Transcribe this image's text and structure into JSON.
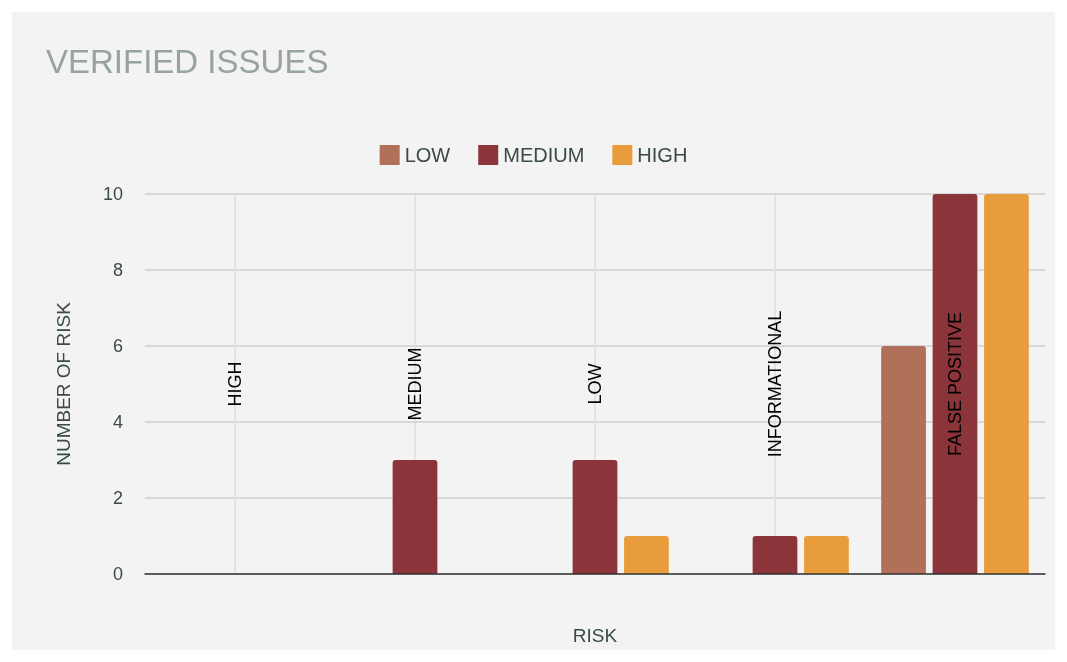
{
  "chart_data": {
    "type": "bar",
    "title": "VERIFIED ISSUES",
    "xlabel": "RISK",
    "ylabel": "NUMBER OF RISK",
    "categories": [
      "HIGH",
      "MEDIUM",
      "LOW",
      "INFORMATIONAL",
      "FALSE POSITIVE"
    ],
    "series": [
      {
        "name": "LOW",
        "color": "#b0705a",
        "values": [
          0,
          0,
          0,
          0,
          6
        ]
      },
      {
        "name": "MEDIUM",
        "color": "#8b343a",
        "values": [
          0,
          3,
          3,
          1,
          10
        ]
      },
      {
        "name": "HIGH",
        "color": "#e89c3c",
        "values": [
          0,
          0,
          1,
          1,
          10
        ]
      }
    ],
    "ylim": [
      0,
      10
    ],
    "yticks": [
      0,
      2,
      4,
      6,
      8,
      10
    ],
    "grid": true,
    "legend": "top"
  }
}
